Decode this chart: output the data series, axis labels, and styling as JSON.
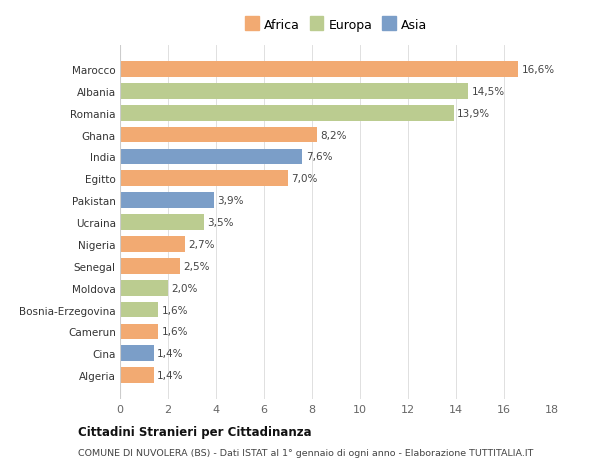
{
  "countries": [
    "Algeria",
    "Cina",
    "Camerun",
    "Bosnia-Erzegovina",
    "Moldova",
    "Senegal",
    "Nigeria",
    "Ucraina",
    "Pakistan",
    "Egitto",
    "India",
    "Ghana",
    "Romania",
    "Albania",
    "Marocco"
  ],
  "values": [
    1.4,
    1.4,
    1.6,
    1.6,
    2.0,
    2.5,
    2.7,
    3.5,
    3.9,
    7.0,
    7.6,
    8.2,
    13.9,
    14.5,
    16.6
  ],
  "labels": [
    "1,4%",
    "1,4%",
    "1,6%",
    "1,6%",
    "2,0%",
    "2,5%",
    "2,7%",
    "3,5%",
    "3,9%",
    "7,0%",
    "7,6%",
    "8,2%",
    "13,9%",
    "14,5%",
    "16,6%"
  ],
  "continents": [
    "Africa",
    "Asia",
    "Africa",
    "Europa",
    "Europa",
    "Africa",
    "Africa",
    "Europa",
    "Asia",
    "Africa",
    "Asia",
    "Africa",
    "Europa",
    "Europa",
    "Africa"
  ],
  "color_Africa": "#F2AA72",
  "color_Europa": "#BBCC90",
  "color_Asia": "#7B9EC8",
  "xlim": [
    0,
    18
  ],
  "xticks": [
    0,
    2,
    4,
    6,
    8,
    10,
    12,
    14,
    16,
    18
  ],
  "title1": "Cittadini Stranieri per Cittadinanza",
  "title2": "COMUNE DI NUVOLERA (BS) - Dati ISTAT al 1° gennaio di ogni anno - Elaborazione TUTTITALIA.IT",
  "background_color": "#ffffff",
  "grid_color": "#e0e0e0"
}
